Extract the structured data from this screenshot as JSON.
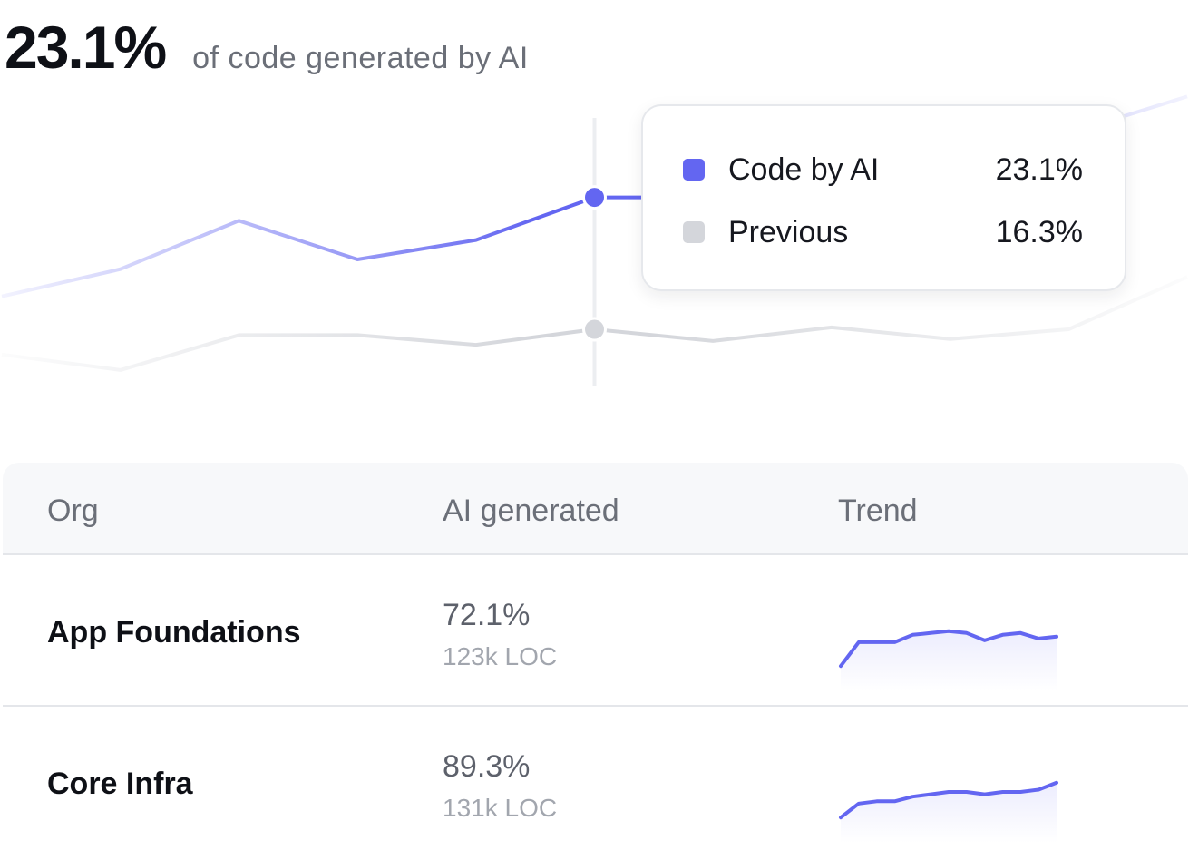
{
  "headline": {
    "value": "23.1%",
    "caption": "of code generated by AI"
  },
  "tooltip": {
    "rows": [
      {
        "label": "Code by AI",
        "value": "23.1%",
        "color": "#6366f1"
      },
      {
        "label": "Previous",
        "value": "16.3%",
        "color": "#d4d6db"
      }
    ]
  },
  "chart_data": {
    "type": "line",
    "x_points": 11,
    "series": [
      {
        "name": "Code by AI",
        "color": "#6366f1",
        "values": [
          18.0,
          19.4,
          21.9,
          19.9,
          20.9,
          23.1,
          23.1,
          23.0,
          24.0,
          26.4,
          28.3
        ]
      },
      {
        "name": "Previous",
        "color": "#d4d6db",
        "values": [
          15.0,
          14.2,
          16.0,
          16.0,
          15.5,
          16.3,
          15.7,
          16.4,
          15.8,
          16.3,
          19.0
        ]
      }
    ],
    "highlight_index": 5,
    "ylim": [
      12,
      30
    ],
    "grid": false,
    "legend": "tooltip"
  },
  "table": {
    "headers": {
      "org": "Org",
      "ai_generated": "AI generated",
      "trend": "Trend"
    },
    "rows": [
      {
        "org": "App Foundations",
        "pct": "72.1%",
        "loc": "123k LOC",
        "trend": [
          70.5,
          71.8,
          71.8,
          71.8,
          72.2,
          72.3,
          72.4,
          72.3,
          71.9,
          72.2,
          72.3,
          72.0,
          72.1
        ]
      },
      {
        "org": "Core Infra",
        "pct": "89.3%",
        "loc": "131k LOC",
        "trend": [
          87.8,
          88.4,
          88.5,
          88.5,
          88.7,
          88.8,
          88.9,
          88.9,
          88.8,
          88.9,
          88.9,
          89.0,
          89.3
        ]
      }
    ],
    "accent": "#6366f1"
  }
}
